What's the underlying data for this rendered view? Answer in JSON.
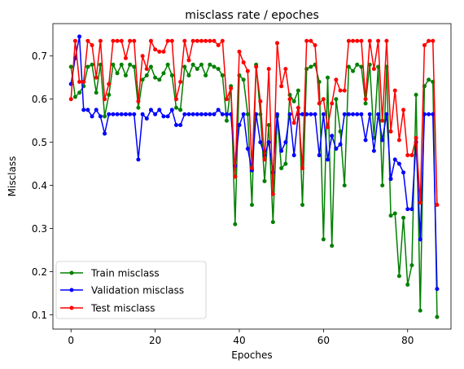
{
  "chart_data": {
    "type": "line",
    "title": "misclass rate / epoches",
    "xlabel": "Epoches",
    "ylabel": "Misclass",
    "xlim": [
      -4.3,
      90.3
    ],
    "ylim": [
      0.067,
      0.775
    ],
    "xticks": [
      0,
      20,
      40,
      60,
      80
    ],
    "yticks": [
      0.1,
      0.2,
      0.3,
      0.4,
      0.5,
      0.6,
      0.7
    ],
    "xtick_labels": [
      "0",
      "20",
      "40",
      "60",
      "80"
    ],
    "ytick_labels": [
      "0.1",
      "0.2",
      "0.3",
      "0.4",
      "0.5",
      "0.6",
      "0.7"
    ],
    "grid": false,
    "legend_position": "lower-left",
    "series": [
      {
        "name": "Train misclass",
        "color": "#008000",
        "values": [
          0.675,
          0.605,
          0.615,
          0.63,
          0.675,
          0.68,
          0.615,
          0.68,
          0.56,
          0.61,
          0.68,
          0.66,
          0.68,
          0.655,
          0.68,
          0.675,
          0.58,
          0.645,
          0.655,
          0.675,
          0.65,
          0.645,
          0.66,
          0.68,
          0.655,
          0.58,
          0.575,
          0.675,
          0.655,
          0.68,
          0.67,
          0.68,
          0.655,
          0.68,
          0.675,
          0.67,
          0.655,
          0.55,
          0.63,
          0.31,
          0.655,
          0.645,
          0.565,
          0.355,
          0.68,
          0.565,
          0.41,
          0.54,
          0.315,
          0.56,
          0.44,
          0.45,
          0.61,
          0.595,
          0.62,
          0.355,
          0.67,
          0.675,
          0.68,
          0.64,
          0.275,
          0.65,
          0.26,
          0.6,
          0.525,
          0.4,
          0.675,
          0.665,
          0.68,
          0.675,
          0.59,
          0.68,
          0.51,
          0.675,
          0.4,
          0.675,
          0.33,
          0.335,
          0.19,
          0.325,
          0.17,
          0.215,
          0.61,
          0.11,
          0.63,
          0.645,
          0.64,
          0.095
        ]
      },
      {
        "name": "Validation misclass",
        "color": "#0000ff",
        "values": [
          0.635,
          0.695,
          0.745,
          0.575,
          0.575,
          0.56,
          0.575,
          0.56,
          0.52,
          0.565,
          0.565,
          0.565,
          0.565,
          0.565,
          0.565,
          0.565,
          0.46,
          0.565,
          0.555,
          0.575,
          0.565,
          0.575,
          0.56,
          0.56,
          0.575,
          0.54,
          0.54,
          0.565,
          0.565,
          0.565,
          0.565,
          0.565,
          0.565,
          0.565,
          0.565,
          0.575,
          0.565,
          0.565,
          0.565,
          0.445,
          0.54,
          0.565,
          0.485,
          0.435,
          0.565,
          0.5,
          0.47,
          0.5,
          0.43,
          0.565,
          0.48,
          0.5,
          0.565,
          0.47,
          0.565,
          0.565,
          0.565,
          0.565,
          0.565,
          0.47,
          0.565,
          0.46,
          0.515,
          0.485,
          0.495,
          0.565,
          0.565,
          0.565,
          0.565,
          0.565,
          0.505,
          0.565,
          0.48,
          0.565,
          0.505,
          0.565,
          0.415,
          0.46,
          0.45,
          0.43,
          0.345,
          0.345,
          0.5,
          0.275,
          0.565,
          0.565,
          0.565,
          0.16
        ]
      },
      {
        "name": "Test misclass",
        "color": "#ff0000",
        "values": [
          0.6,
          0.735,
          0.64,
          0.64,
          0.735,
          0.725,
          0.65,
          0.735,
          0.6,
          0.635,
          0.735,
          0.735,
          0.735,
          0.695,
          0.735,
          0.735,
          0.595,
          0.7,
          0.67,
          0.735,
          0.715,
          0.71,
          0.71,
          0.735,
          0.735,
          0.6,
          0.64,
          0.735,
          0.69,
          0.735,
          0.735,
          0.735,
          0.735,
          0.735,
          0.735,
          0.725,
          0.735,
          0.6,
          0.625,
          0.42,
          0.71,
          0.685,
          0.665,
          0.44,
          0.675,
          0.595,
          0.46,
          0.67,
          0.38,
          0.73,
          0.63,
          0.67,
          0.6,
          0.545,
          0.58,
          0.44,
          0.735,
          0.735,
          0.725,
          0.59,
          0.6,
          0.535,
          0.59,
          0.645,
          0.62,
          0.62,
          0.735,
          0.735,
          0.735,
          0.735,
          0.6,
          0.735,
          0.67,
          0.735,
          0.55,
          0.735,
          0.525,
          0.62,
          0.505,
          0.575,
          0.47,
          0.47,
          0.51,
          0.36,
          0.725,
          0.735,
          0.735,
          0.355
        ]
      }
    ]
  }
}
